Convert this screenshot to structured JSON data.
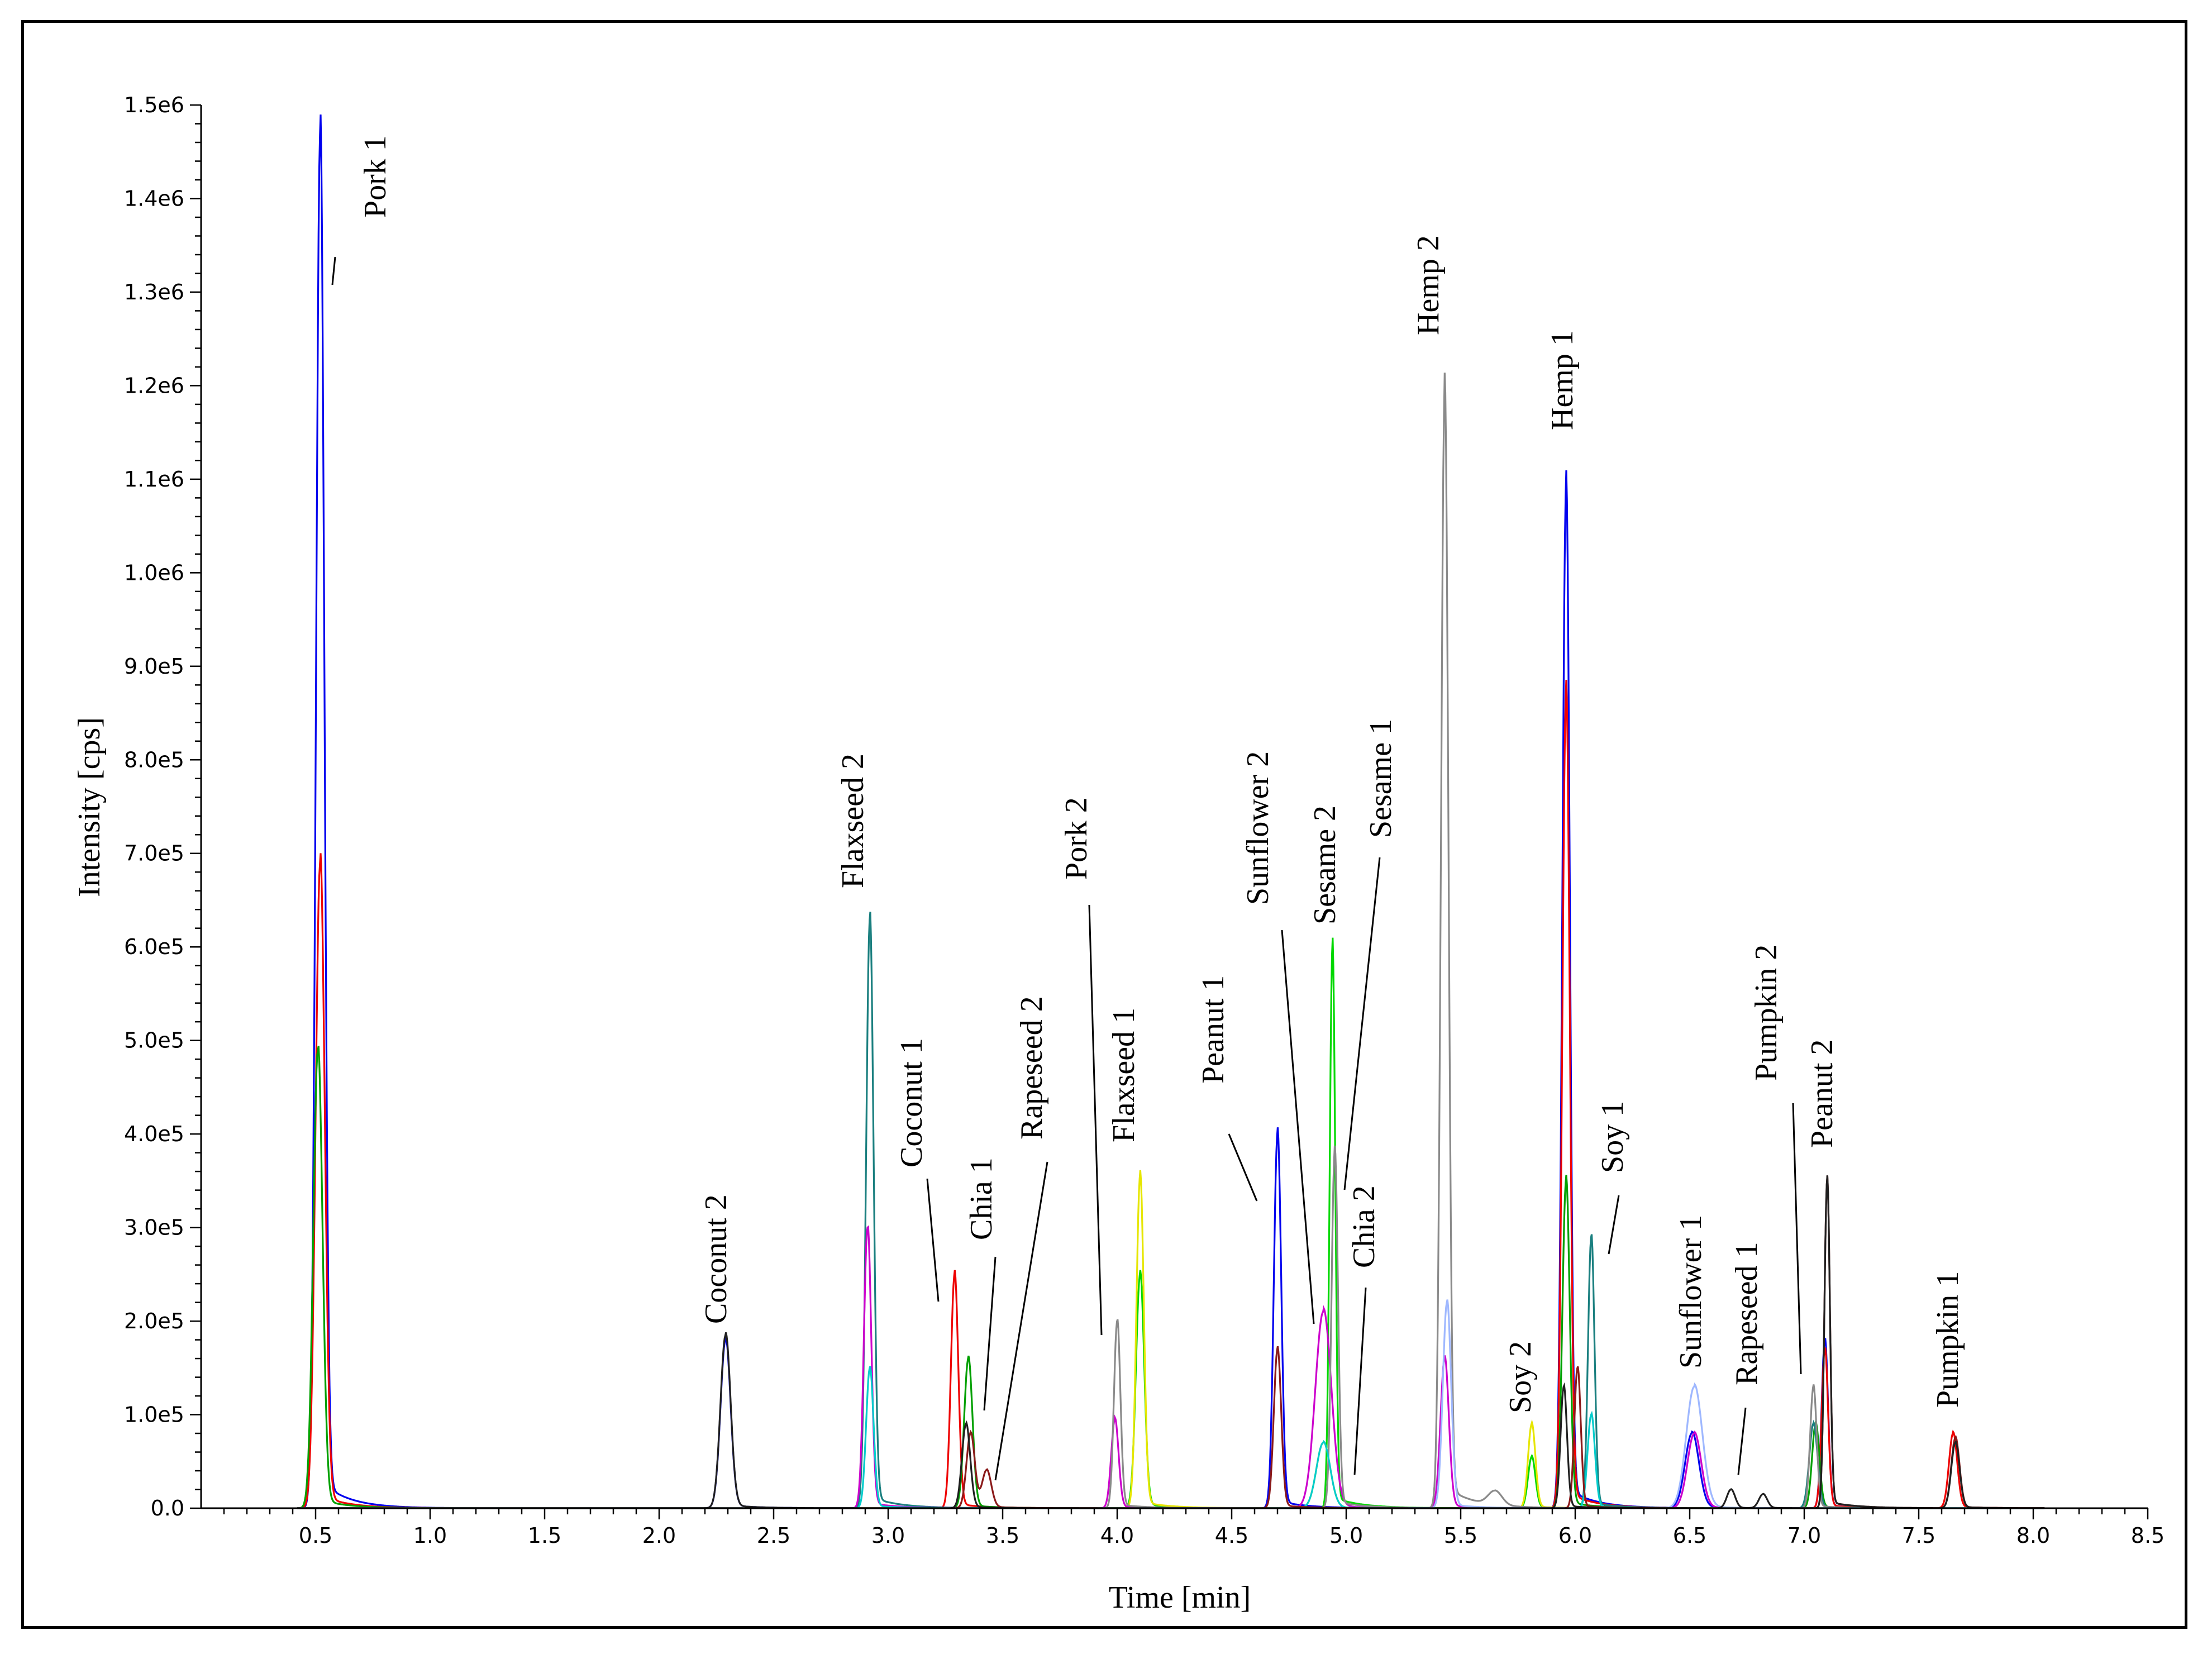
{
  "chart_data": {
    "type": "line",
    "title": "",
    "xlabel": "Time [min]",
    "ylabel": "Intensity [cps]",
    "xlim": [
      0.0,
      8.5
    ],
    "ylim": [
      0,
      1500000
    ],
    "x_ticks": [
      "0.5",
      "1.0",
      "1.5",
      "2.0",
      "2.5",
      "3.0",
      "3.5",
      "4.0",
      "4.5",
      "5.0",
      "5.5",
      "6.0",
      "6.5",
      "7.0",
      "7.5",
      "8.0",
      "8.5"
    ],
    "y_ticks": [
      "0.0",
      "1.0e5",
      "2.0e5",
      "3.0e5",
      "4.0e5",
      "5.0e5",
      "6.0e5",
      "7.0e5",
      "8.0e5",
      "9.0e5",
      "1.0e6",
      "1.1e6",
      "1.2e6",
      "1.3e6",
      "1.4e6",
      "1.5e6"
    ],
    "grid": false,
    "legend": "none",
    "series": [
      {
        "color": "#0000ee",
        "peaks": [
          [
            0.52,
            1470000,
            0.018
          ],
          [
            2.29,
            180000,
            0.022
          ],
          [
            4.7,
            400000,
            0.016
          ],
          [
            5.96,
            1090000,
            0.016
          ],
          [
            6.51,
            80000,
            0.03
          ],
          [
            7.09,
            180000,
            0.014
          ]
        ]
      },
      {
        "color": "#ee0000",
        "peaks": [
          [
            0.52,
            690000,
            0.02
          ],
          [
            3.29,
            250000,
            0.016
          ],
          [
            5.96,
            870000,
            0.016
          ],
          [
            7.09,
            170000,
            0.014
          ],
          [
            7.65,
            80000,
            0.018
          ]
        ]
      },
      {
        "color": "#00a000",
        "peaks": [
          [
            0.51,
            490000,
            0.02
          ],
          [
            3.35,
            160000,
            0.018
          ],
          [
            5.96,
            350000,
            0.016
          ],
          [
            7.05,
            90000,
            0.016
          ]
        ]
      },
      {
        "color": "#1a7f7f",
        "peaks": [
          [
            2.92,
            630000,
            0.016
          ],
          [
            6.07,
            290000,
            0.014
          ],
          [
            7.04,
            90000,
            0.018
          ]
        ]
      },
      {
        "color": "#00d800",
        "peaks": [
          [
            4.1,
            250000,
            0.018
          ],
          [
            4.94,
            600000,
            0.012
          ],
          [
            5.81,
            55000,
            0.016
          ]
        ]
      },
      {
        "color": "#e6e600",
        "peaks": [
          [
            4.1,
            355000,
            0.016
          ],
          [
            4.9,
            70000,
            0.03
          ],
          [
            5.81,
            90000,
            0.016
          ]
        ]
      },
      {
        "color": "#cc00cc",
        "peaks": [
          [
            2.91,
            300000,
            0.016
          ],
          [
            3.99,
            95000,
            0.016
          ],
          [
            4.9,
            210000,
            0.035
          ],
          [
            5.43,
            160000,
            0.018
          ],
          [
            6.52,
            80000,
            0.03
          ]
        ]
      },
      {
        "color": "#8a8a8a",
        "peaks": [
          [
            4.0,
            200000,
            0.014
          ],
          [
            4.95,
            380000,
            0.014
          ],
          [
            5.43,
            1190000,
            0.016
          ],
          [
            5.65,
            15000,
            0.03
          ],
          [
            7.04,
            130000,
            0.014
          ]
        ]
      },
      {
        "color": "#9fb8ff",
        "peaks": [
          [
            5.44,
            220000,
            0.018
          ],
          [
            6.52,
            130000,
            0.035
          ]
        ]
      },
      {
        "color": "#00cccc",
        "peaks": [
          [
            2.92,
            150000,
            0.016
          ],
          [
            4.9,
            70000,
            0.03
          ],
          [
            6.07,
            100000,
            0.016
          ]
        ]
      },
      {
        "color": "#8b1a1a",
        "peaks": [
          [
            3.36,
            80000,
            0.018
          ],
          [
            3.43,
            40000,
            0.02
          ],
          [
            4.7,
            170000,
            0.016
          ],
          [
            6.01,
            150000,
            0.014
          ],
          [
            7.1,
            350000,
            0.012
          ],
          [
            7.66,
            75000,
            0.018
          ]
        ]
      },
      {
        "color": "#202020",
        "peaks": [
          [
            2.29,
            185000,
            0.022
          ],
          [
            3.34,
            90000,
            0.018
          ],
          [
            5.95,
            130000,
            0.014
          ],
          [
            6.68,
            20000,
            0.018
          ],
          [
            6.82,
            15000,
            0.018
          ],
          [
            7.1,
            350000,
            0.012
          ],
          [
            7.66,
            70000,
            0.018
          ]
        ]
      }
    ],
    "annotations": [
      {
        "text": "Pork 1",
        "x": 0.52
      },
      {
        "text": "Coconut 2",
        "x": 2.29
      },
      {
        "text": "Flaxseed 2",
        "x": 2.92
      },
      {
        "text": "Coconut 1",
        "x": 3.29
      },
      {
        "text": "Chia 1",
        "x": 3.35
      },
      {
        "text": "Rapeseed 2",
        "x": 3.43
      },
      {
        "text": "Pork 2",
        "x": 3.99
      },
      {
        "text": "Flaxseed 1",
        "x": 4.1
      },
      {
        "text": "Peanut 1",
        "x": 4.7
      },
      {
        "text": "Sunflower 2",
        "x": 4.9
      },
      {
        "text": "Sesame 2",
        "x": 4.94
      },
      {
        "text": "Sesame 1",
        "x": 4.95
      },
      {
        "text": "Chia 2",
        "x": 5.0
      },
      {
        "text": "Hemp 2",
        "x": 5.43
      },
      {
        "text": "Soy 2",
        "x": 5.81
      },
      {
        "text": "Hemp 1",
        "x": 5.96
      },
      {
        "text": "Soy 1",
        "x": 6.07
      },
      {
        "text": "Sunflower 1",
        "x": 6.52
      },
      {
        "text": "Rapeseed 1",
        "x": 6.68
      },
      {
        "text": "Pumpkin 2",
        "x": 7.04
      },
      {
        "text": "Peanut 2",
        "x": 7.1
      },
      {
        "text": "Pumpkin 1",
        "x": 7.66
      }
    ]
  }
}
